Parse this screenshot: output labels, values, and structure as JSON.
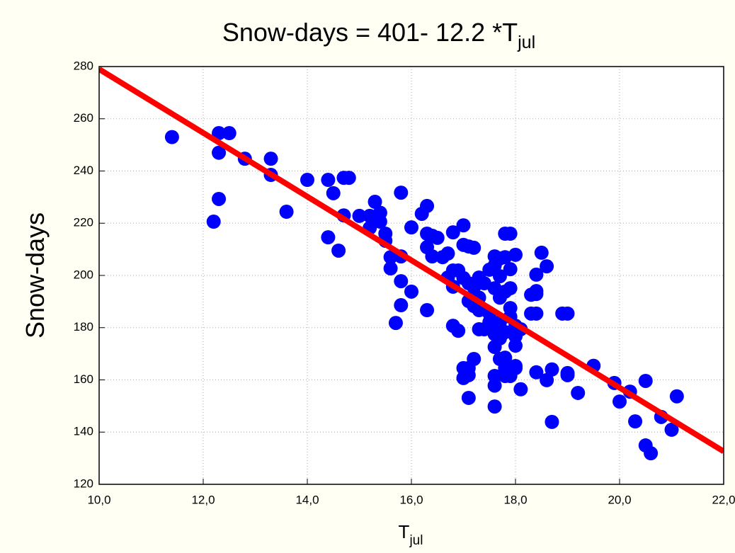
{
  "chart_data": {
    "type": "scatter",
    "title": "Snow-days = 401- 12.2 *T",
    "title_subscript": "jul",
    "x_label": "T",
    "x_label_subscript": "jul",
    "y_label": "Snow-days",
    "xlim": [
      10,
      22
    ],
    "xticks": [
      {
        "value": 10,
        "label": "10,0"
      },
      {
        "value": 12,
        "label": "12,0"
      },
      {
        "value": 14,
        "label": "14,0"
      },
      {
        "value": 16,
        "label": "16,0"
      },
      {
        "value": 18,
        "label": "18,0"
      },
      {
        "value": 20,
        "label": "20,0"
      },
      {
        "value": 22,
        "label": "22,0"
      }
    ],
    "ylim": [
      120,
      280
    ],
    "yticks": [
      120,
      140,
      160,
      180,
      200,
      220,
      240,
      260,
      280
    ],
    "grid": true,
    "fit": {
      "intercept": 401,
      "slope": -12.2,
      "color": "#ff0000"
    },
    "series": [
      {
        "color": "#0000ff",
        "x": [
          11.4,
          12.3,
          12.5,
          12.3,
          12.8,
          13.3,
          13.3,
          12.3,
          12.2,
          13.6,
          14.0,
          14.4,
          14.5,
          14.7,
          14.8,
          14.7,
          14.4,
          14.6,
          15.0,
          15.2,
          15.3,
          15.4,
          15.4,
          15.2,
          15.5,
          15.5,
          15.8,
          16.0,
          16.3,
          16.2,
          16.3,
          16.4,
          16.3,
          16.5,
          16.4,
          16.6,
          16.7,
          16.8,
          17.0,
          17.0,
          17.1,
          17.2,
          15.6,
          15.8,
          15.6,
          15.8,
          15.8,
          16.0,
          15.7,
          16.3,
          16.7,
          16.8,
          16.9,
          17.0,
          17.1,
          16.8,
          17.2,
          17.3,
          17.3,
          17.1,
          17.2,
          17.3,
          17.5,
          17.4,
          17.5,
          17.6,
          17.6,
          17.7,
          17.7,
          17.6,
          17.7,
          17.8,
          17.9,
          17.8,
          18.0,
          17.9,
          17.8,
          17.9,
          17.9,
          17.9,
          18.0,
          17.7,
          17.5,
          17.4,
          17.3,
          17.6,
          17.6,
          17.7,
          17.6,
          17.8,
          18.0,
          18.1,
          18.0,
          16.8,
          16.9,
          17.2,
          17.0,
          17.1,
          17.0,
          17.1,
          17.1,
          17.6,
          17.6,
          17.6,
          17.7,
          17.8,
          17.8,
          17.9,
          18.0,
          18.0,
          17.8,
          18.1,
          18.4,
          18.3,
          18.3,
          18.4,
          18.5,
          18.4,
          18.4,
          18.6,
          18.4,
          18.6,
          18.7,
          18.7,
          19.0,
          18.9,
          19.0,
          19.0,
          19.2,
          19.5,
          19.9,
          20.0,
          20.2,
          20.3,
          20.5,
          20.5,
          20.6,
          20.8,
          21.0,
          21.1
        ],
        "values": [
          253,
          254.5,
          254.5,
          247,
          244.7,
          244.7,
          238.5,
          229.3,
          220.6,
          224.4,
          236.6,
          236.6,
          231.5,
          237.4,
          237.4,
          223,
          214.6,
          209.5,
          222.8,
          222.8,
          228.2,
          224,
          220.6,
          218.2,
          216,
          213.3,
          231.7,
          218.4,
          226.6,
          223.6,
          216,
          215.2,
          210.8,
          214.4,
          207.3,
          207,
          208.4,
          216.5,
          219.2,
          211.7,
          211.1,
          210.6,
          207,
          207.3,
          202.7,
          197.8,
          188.6,
          193.8,
          181.8,
          186.7,
          199.2,
          201.9,
          201.9,
          199,
          197,
          195.7,
          195.4,
          199.2,
          191.5,
          190.2,
          188.3,
          186.7,
          185.4,
          197,
          202.2,
          203.8,
          207.3,
          206.5,
          199.7,
          195.1,
          191.5,
          216,
          216,
          207,
          207.9,
          202.4,
          193.8,
          195.1,
          187.5,
          184.2,
          180.7,
          182.1,
          182.1,
          179.4,
          179.4,
          177.5,
          178.8,
          175.9,
          172.6,
          178.3,
          176.7,
          179.4,
          173.1,
          180.7,
          178.8,
          168,
          164.5,
          164.5,
          160.7,
          161.8,
          153.1,
          161.5,
          157.8,
          149.8,
          168,
          168.5,
          164.5,
          161.5,
          165.3,
          164.5,
          161.5,
          156.4,
          192.9,
          192.6,
          185.4,
          185.4,
          208.7,
          200.3,
          194,
          203.5,
          162.9,
          159.9,
          164,
          143.9,
          161.8,
          185.4,
          185.4,
          162.6,
          155,
          165.4,
          158.8,
          151.7,
          155.5,
          144.1,
          159.6,
          134.9,
          131.9,
          145.8,
          140.9,
          153.7
        ]
      }
    ]
  }
}
